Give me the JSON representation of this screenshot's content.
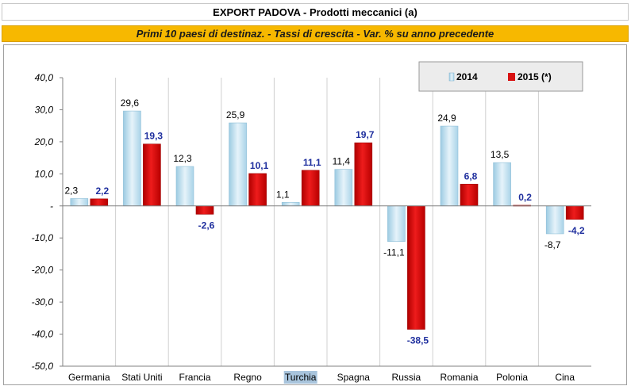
{
  "chart_data": {
    "type": "bar",
    "title": "EXPORT PADOVA - Prodotti meccanici (a)",
    "subtitle": "Primi 10 paesi di destinaz. - Tassi di crescita  -  Var. %  su anno precedente",
    "categories": [
      "Germania",
      "Stati Uniti",
      "Francia",
      "Regno",
      "Turchia",
      "Spagna",
      "Russia",
      "Romania",
      "Polonia",
      "Cina"
    ],
    "highlighted_category": "Turchia",
    "series": [
      {
        "name": "2014",
        "color": "#cfe6f2",
        "values": [
          2.3,
          29.6,
          12.3,
          25.9,
          1.1,
          11.4,
          -11.1,
          24.9,
          13.5,
          -8.7
        ],
        "labels": [
          "2,3",
          "29,6",
          "12,3",
          "25,9",
          "1,1",
          "11,4",
          "-11,1",
          "24,9",
          "13,5",
          "-8,7"
        ]
      },
      {
        "name": "2015 (*)",
        "color": "#e01010",
        "values": [
          2.2,
          19.3,
          -2.6,
          10.1,
          11.1,
          19.7,
          -38.5,
          6.8,
          0.2,
          -4.2
        ],
        "labels": [
          "2,2",
          "19,3",
          "-2,6",
          "10,1",
          "11,1",
          "19,7",
          "-38,5",
          "6,8",
          "0,2",
          "-4,2"
        ]
      }
    ],
    "ylim": [
      -50,
      40
    ],
    "yticks": [
      40,
      30,
      20,
      10,
      0,
      -10,
      -20,
      -30,
      -40,
      -50
    ],
    "ytick_labels": [
      "40,0",
      "30,0",
      "20,0",
      "10,0",
      "-",
      "-10,0",
      "-20,0",
      "-30,0",
      "-40,0",
      "-50,0"
    ],
    "xlabel": "",
    "ylabel": "",
    "legend": {
      "position": "top-right",
      "entries": [
        "2014",
        "2015 (*)"
      ]
    }
  }
}
